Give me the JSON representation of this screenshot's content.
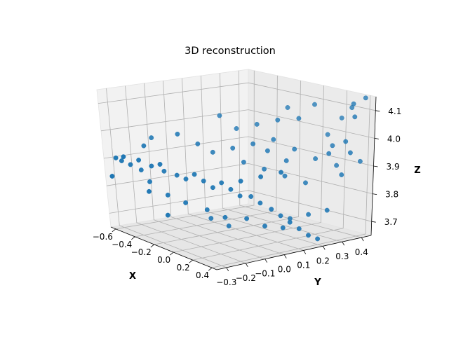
{
  "chart_data": {
    "type": "scatter",
    "projection": "3d",
    "title": "3D reconstruction",
    "xlabel": "X",
    "ylabel": "Y",
    "zlabel": "Z",
    "xlim": [
      -0.65,
      0.45
    ],
    "ylim": [
      -0.35,
      0.45
    ],
    "zlim": [
      3.65,
      4.15
    ],
    "xticks": [
      "−0.6",
      "−0.4",
      "−0.2",
      "0.0",
      "0.2",
      "0.4"
    ],
    "yticks": [
      "−0.3",
      "−0.2",
      "−0.1",
      "0.0",
      "0.1",
      "0.2",
      "0.3",
      "0.4"
    ],
    "zticks": [
      "3.7",
      "3.8",
      "3.9",
      "4.0",
      "4.1"
    ],
    "grid": true,
    "marker_color": "#1f77b4",
    "points": [
      [
        -0.62,
        -0.3,
        3.9
      ],
      [
        -0.6,
        -0.28,
        3.89
      ],
      [
        -0.55,
        -0.26,
        3.88
      ],
      [
        -0.5,
        -0.24,
        3.9
      ],
      [
        -0.52,
        -0.22,
        3.86
      ],
      [
        -0.45,
        -0.2,
        3.88
      ],
      [
        -0.4,
        -0.18,
        3.89
      ],
      [
        -0.42,
        -0.15,
        3.86
      ],
      [
        -0.35,
        -0.12,
        3.85
      ],
      [
        -0.3,
        -0.1,
        3.84
      ],
      [
        -0.25,
        -0.08,
        3.86
      ],
      [
        -0.2,
        -0.06,
        3.84
      ],
      [
        -0.15,
        -0.04,
        3.82
      ],
      [
        -0.1,
        -0.02,
        3.84
      ],
      [
        -0.05,
        0.0,
        3.82
      ],
      [
        0.0,
        0.02,
        3.8
      ],
      [
        0.05,
        0.05,
        3.8
      ],
      [
        0.1,
        0.07,
        3.78
      ],
      [
        0.15,
        0.1,
        3.76
      ],
      [
        0.2,
        0.12,
        3.74
      ],
      [
        0.25,
        0.14,
        3.72
      ],
      [
        0.3,
        0.16,
        3.7
      ],
      [
        0.35,
        0.18,
        3.68
      ],
      [
        0.4,
        0.2,
        3.67
      ],
      [
        -0.48,
        -0.2,
        3.82
      ],
      [
        -0.38,
        -0.16,
        3.78
      ],
      [
        -0.28,
        -0.12,
        3.76
      ],
      [
        -0.18,
        -0.06,
        3.74
      ],
      [
        -0.08,
        -0.02,
        3.72
      ],
      [
        0.02,
        0.04,
        3.72
      ],
      [
        0.12,
        0.08,
        3.7
      ],
      [
        0.22,
        0.12,
        3.7
      ],
      [
        -0.3,
        0.05,
        3.92
      ],
      [
        -0.2,
        0.1,
        3.94
      ],
      [
        -0.1,
        0.15,
        3.96
      ],
      [
        0.0,
        0.2,
        3.98
      ],
      [
        0.1,
        0.25,
        3.95
      ],
      [
        0.2,
        0.3,
        3.92
      ],
      [
        0.3,
        0.35,
        3.9
      ],
      [
        -0.25,
        0.15,
        4.0
      ],
      [
        -0.15,
        0.2,
        4.02
      ],
      [
        -0.05,
        0.25,
        4.04
      ],
      [
        0.05,
        0.3,
        4.05
      ],
      [
        -0.35,
        0.0,
        3.95
      ],
      [
        -0.45,
        -0.05,
        3.98
      ],
      [
        0.35,
        0.4,
        4.12
      ],
      [
        0.3,
        0.42,
        4.1
      ],
      [
        0.4,
        0.38,
        4.08
      ],
      [
        0.38,
        0.44,
        4.14
      ],
      [
        0.25,
        0.4,
        4.06
      ],
      [
        -0.1,
        0.1,
        3.9
      ],
      [
        0.0,
        0.15,
        3.88
      ],
      [
        0.1,
        0.2,
        3.86
      ],
      [
        0.2,
        0.25,
        3.84
      ],
      [
        -0.22,
        -0.02,
        3.7
      ],
      [
        -0.12,
        0.02,
        3.68
      ],
      [
        0.05,
        0.0,
        3.86
      ],
      [
        0.15,
        0.05,
        3.88
      ],
      [
        0.25,
        0.1,
        3.9
      ],
      [
        -0.55,
        -0.18,
        3.94
      ],
      [
        -0.58,
        -0.12,
        3.96
      ],
      [
        0.32,
        0.3,
        3.95
      ],
      [
        0.28,
        0.34,
        3.97
      ],
      [
        0.36,
        0.36,
        3.99
      ],
      [
        0.42,
        0.4,
        3.92
      ],
      [
        0.4,
        0.32,
        3.88
      ],
      [
        -0.02,
        0.18,
        3.94
      ],
      [
        0.08,
        0.22,
        3.91
      ],
      [
        -0.4,
        -0.25,
        3.8
      ],
      [
        -0.32,
        -0.2,
        3.72
      ],
      [
        0.18,
        0.18,
        3.72
      ],
      [
        0.28,
        0.22,
        3.74
      ],
      [
        0.38,
        0.26,
        3.76
      ],
      [
        -0.6,
        -0.34,
        3.84
      ],
      [
        -0.5,
        -0.32,
        3.92
      ],
      [
        0.44,
        0.34,
        3.96
      ],
      [
        0.2,
        0.36,
        4.0
      ],
      [
        -0.05,
        0.3,
        4.08
      ],
      [
        0.1,
        0.35,
        4.1
      ],
      [
        -0.35,
        0.12,
        4.04
      ]
    ]
  }
}
